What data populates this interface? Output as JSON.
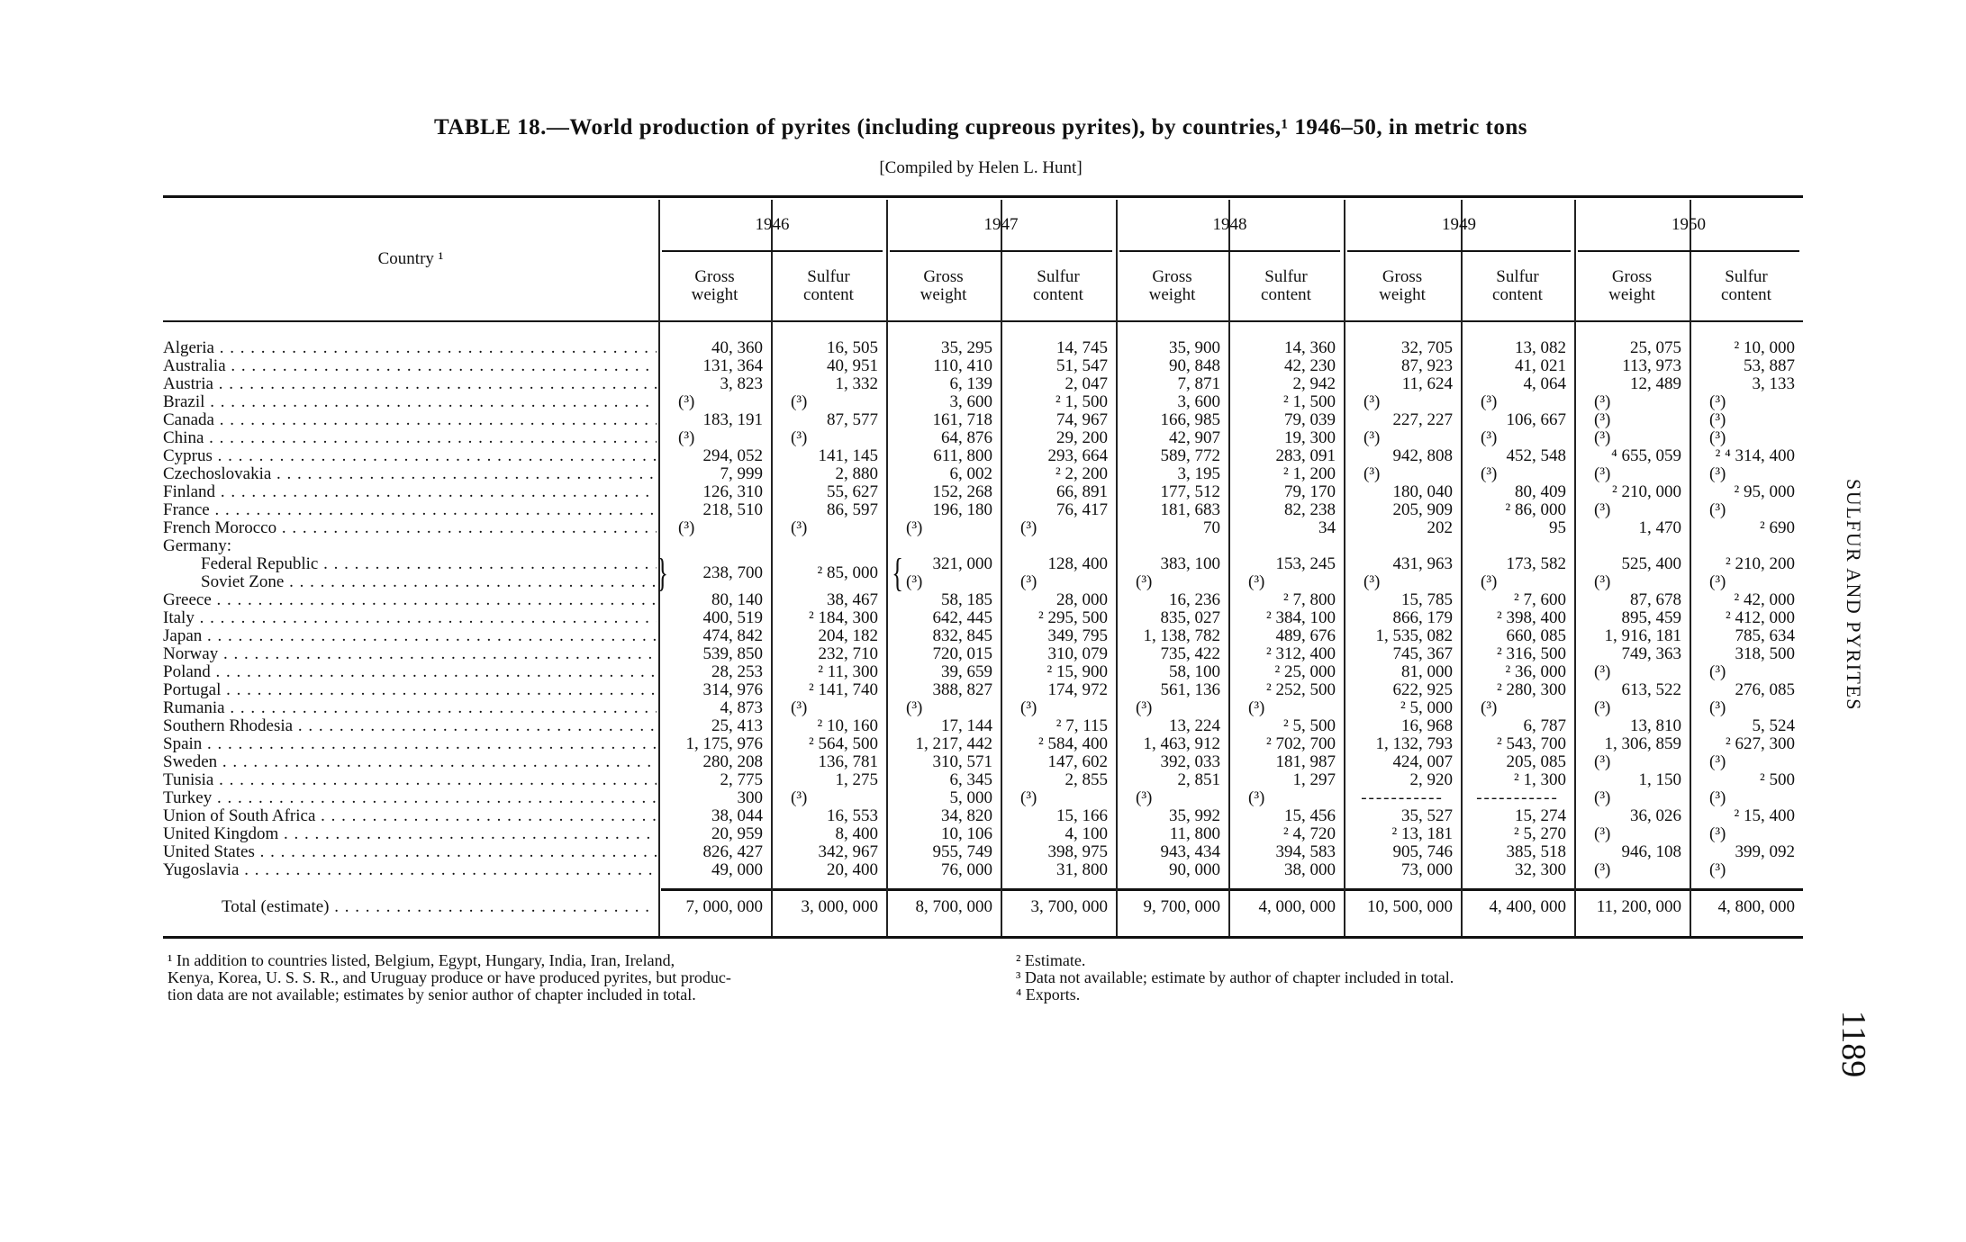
{
  "title": "TABLE 18.—World production of pyrites (including cupreous pyrites), by countries,¹ 1946–50, in metric tons",
  "subtitle": "[Compiled by Helen L. Hunt]",
  "side_heading": "SULFUR AND PYRITES",
  "page_number": "1189",
  "header": {
    "country": "Country ¹",
    "years": [
      "1946",
      "1947",
      "1948",
      "1949",
      "1950"
    ],
    "gross": [
      "Gross",
      "weight"
    ],
    "sulfur": [
      "Sulfur",
      "content"
    ]
  },
  "rows": [
    {
      "country": "Algeria",
      "values": [
        "40, 360",
        "16, 505",
        "35, 295",
        "14, 745",
        "35, 900",
        "14, 360",
        "32, 705",
        "13, 082",
        "25, 075",
        "² 10, 000"
      ]
    },
    {
      "country": "Australia",
      "values": [
        "131, 364",
        "40, 951",
        "110, 410",
        "51, 547",
        "90, 848",
        "42, 230",
        "87, 923",
        "41, 021",
        "113, 973",
        "53, 887"
      ]
    },
    {
      "country": "Austria",
      "values": [
        "3, 823",
        "1, 332",
        "6, 139",
        "2, 047",
        "7, 871",
        "2, 942",
        "11, 624",
        "4, 064",
        "12, 489",
        "3, 133"
      ]
    },
    {
      "country": "Brazil",
      "values": [
        "(³)",
        "(³)",
        "3, 600",
        "² 1, 500",
        "3, 600",
        "² 1, 500",
        "(³)",
        "(³)",
        "(³)",
        "(³)"
      ]
    },
    {
      "country": "Canada",
      "values": [
        "183, 191",
        "87, 577",
        "161, 718",
        "74, 967",
        "166, 985",
        "79, 039",
        "227, 227",
        "106, 667",
        "(³)",
        "(³)"
      ]
    },
    {
      "country": "China",
      "values": [
        "(³)",
        "(³)",
        "64, 876",
        "29, 200",
        "42, 907",
        "19, 300",
        "(³)",
        "(³)",
        "(³)",
        "(³)"
      ]
    },
    {
      "country": "Cyprus",
      "values": [
        "294, 052",
        "141, 145",
        "611, 800",
        "293, 664",
        "589, 772",
        "283, 091",
        "942, 808",
        "452, 548",
        "⁴ 655, 059",
        "² ⁴ 314, 400"
      ]
    },
    {
      "country": "Czechoslovakia",
      "values": [
        "7, 999",
        "2, 880",
        "6, 002",
        "² 2, 200",
        "3, 195",
        "² 1, 200",
        "(³)",
        "(³)",
        "(³)",
        "(³)"
      ]
    },
    {
      "country": "Finland",
      "values": [
        "126, 310",
        "55, 627",
        "152, 268",
        "66, 891",
        "177, 512",
        "79, 170",
        "180, 040",
        "80, 409",
        "² 210, 000",
        "² 95, 000"
      ]
    },
    {
      "country": "France",
      "values": [
        "218, 510",
        "86, 597",
        "196, 180",
        "76, 417",
        "181, 683",
        "82, 238",
        "205, 909",
        "² 86, 000",
        "(³)",
        "(³)"
      ]
    },
    {
      "country": "French Morocco",
      "values": [
        "(³)",
        "(³)",
        "(³)",
        "(³)",
        "70",
        "34",
        "202",
        "95",
        "1, 470",
        "² 690"
      ]
    },
    {
      "country": "Germany:",
      "heading": true,
      "values": [
        "",
        "",
        "",
        "",
        "",
        "",
        "",
        "",
        "",
        ""
      ]
    },
    {
      "country": "Federal Republic",
      "indent": true,
      "values": [
        "",
        "",
        "321, 000",
        "128, 400",
        "383, 100",
        "153, 245",
        "431, 963",
        "173, 582",
        "525, 400",
        "² 210, 200"
      ]
    },
    {
      "country": "Soviet Zone",
      "indent": true,
      "values": [
        "",
        "",
        "(³)",
        "(³)",
        "(³)",
        "(³)",
        "(³)",
        "(³)",
        "(³)",
        "(³)"
      ]
    },
    {
      "country": "Greece",
      "values": [
        "80, 140",
        "38, 467",
        "58, 185",
        "28, 000",
        "16, 236",
        "² 7, 800",
        "15, 785",
        "² 7, 600",
        "87, 678",
        "² 42, 000"
      ]
    },
    {
      "country": "Italy",
      "values": [
        "400, 519",
        "² 184, 300",
        "642, 445",
        "² 295, 500",
        "835, 027",
        "² 384, 100",
        "866, 179",
        "² 398, 400",
        "895, 459",
        "² 412, 000"
      ]
    },
    {
      "country": "Japan",
      "values": [
        "474, 842",
        "204, 182",
        "832, 845",
        "349, 795",
        "1, 138, 782",
        "489, 676",
        "1, 535, 082",
        "660, 085",
        "1, 916, 181",
        "785, 634"
      ]
    },
    {
      "country": "Norway",
      "values": [
        "539, 850",
        "232, 710",
        "720, 015",
        "310, 079",
        "735, 422",
        "² 312, 400",
        "745, 367",
        "² 316, 500",
        "749, 363",
        "318, 500"
      ]
    },
    {
      "country": "Poland",
      "values": [
        "28, 253",
        "² 11, 300",
        "39, 659",
        "² 15, 900",
        "58, 100",
        "² 25, 000",
        "81, 000",
        "² 36, 000",
        "(³)",
        "(³)"
      ]
    },
    {
      "country": "Portugal",
      "values": [
        "314, 976",
        "² 141, 740",
        "388, 827",
        "174, 972",
        "561, 136",
        "² 252, 500",
        "622, 925",
        "² 280, 300",
        "613, 522",
        "276, 085"
      ]
    },
    {
      "country": "Rumania",
      "values": [
        "4, 873",
        "(³)",
        "(³)",
        "(³)",
        "(³)",
        "(³)",
        "² 5, 000",
        "(³)",
        "(³)",
        "(³)"
      ]
    },
    {
      "country": "Southern Rhodesia",
      "values": [
        "25, 413",
        "² 10, 160",
        "17, 144",
        "² 7, 115",
        "13, 224",
        "² 5, 500",
        "16, 968",
        "6, 787",
        "13, 810",
        "5, 524"
      ]
    },
    {
      "country": "Spain",
      "values": [
        "1, 175, 976",
        "² 564, 500",
        "1, 217, 442",
        "² 584, 400",
        "1, 463, 912",
        "² 702, 700",
        "1, 132, 793",
        "² 543, 700",
        "1, 306, 859",
        "² 627, 300"
      ]
    },
    {
      "country": "Sweden",
      "values": [
        "280, 208",
        "136, 781",
        "310, 571",
        "147, 602",
        "392, 033",
        "181, 987",
        "424, 007",
        "205, 085",
        "(³)",
        "(³)"
      ]
    },
    {
      "country": "Tunisia",
      "values": [
        "2, 775",
        "1, 275",
        "6, 345",
        "2, 855",
        "2, 851",
        "1, 297",
        "2, 920",
        "² 1, 300",
        "1, 150",
        "² 500"
      ]
    },
    {
      "country": "Turkey",
      "values": [
        "300",
        "(³)",
        "5, 000",
        "(³)",
        "(³)",
        "(³)",
        "-----------",
        "-----------",
        "(³)",
        "(³)"
      ]
    },
    {
      "country": "Union of South Africa",
      "values": [
        "38, 044",
        "16, 553",
        "34, 820",
        "15, 166",
        "35, 992",
        "15, 456",
        "35, 527",
        "15, 274",
        "36, 026",
        "² 15, 400"
      ]
    },
    {
      "country": "United Kingdom",
      "values": [
        "20, 959",
        "8, 400",
        "10, 106",
        "4, 100",
        "11, 800",
        "² 4, 720",
        "² 13, 181",
        "² 5, 270",
        "(³)",
        "(³)"
      ]
    },
    {
      "country": "United States",
      "values": [
        "826, 427",
        "342, 967",
        "955, 749",
        "398, 975",
        "943, 434",
        "394, 583",
        "905, 746",
        "385, 518",
        "946, 108",
        "399, 092"
      ]
    },
    {
      "country": "Yugoslavia",
      "values": [
        "49, 000",
        "20, 400",
        "76, 000",
        "31, 800",
        "90, 000",
        "38, 000",
        "73, 000",
        "32, 300",
        "(³)",
        "(³)"
      ]
    }
  ],
  "germany_1946_combined": [
    "238, 700",
    "² 85, 000"
  ],
  "total": {
    "label": "Total (estimate)",
    "values": [
      "7, 000, 000",
      "3, 000, 000",
      "8, 700, 000",
      "3, 700, 000",
      "9, 700, 000",
      "4, 000, 000",
      "10, 500, 000",
      "4, 400, 000",
      "11, 200, 000",
      "4, 800, 000"
    ]
  },
  "footnotes": {
    "note1": [
      "¹ In addition to countries listed, Belgium, Egypt, Hungary, India, Iran, Ireland,",
      "Kenya, Korea, U. S. S. R., and Uruguay produce or have produced pyrites, but produc-",
      "tion data are not available; estimates by senior author of chapter included in total."
    ],
    "note2": "² Estimate.",
    "note3": "³ Data not available; estimate by author of chapter included in total.",
    "note4": "⁴ Exports."
  }
}
